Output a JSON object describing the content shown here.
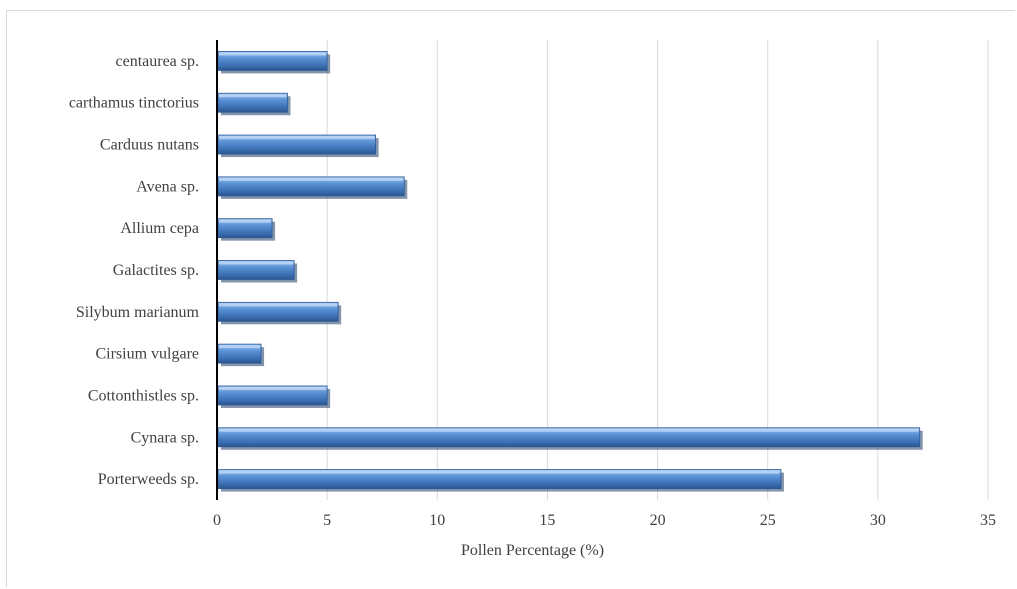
{
  "chart_data": {
    "type": "bar",
    "orientation": "horizontal",
    "categories": [
      "Porterweeds sp.",
      "Cynara sp.",
      "Cottonthistles sp.",
      "Cirsium vulgare",
      "Silybum marianum",
      "Galactites sp.",
      "Allium cepa",
      "Avena sp.",
      "Carduus nutans",
      "carthamus tinctorius",
      "centaurea sp."
    ],
    "values": [
      25.6,
      31.9,
      5.0,
      2.0,
      5.5,
      3.5,
      2.5,
      8.5,
      7.2,
      3.2,
      5.0
    ],
    "xlabel": "Pollen Percentage (%)",
    "ylabel": "",
    "xlim": [
      0,
      35
    ],
    "xticks": [
      "0",
      "5",
      "10",
      "15",
      "20",
      "25",
      "30",
      "35"
    ],
    "grid": "vertical",
    "bar_color": "#4f81bd"
  }
}
